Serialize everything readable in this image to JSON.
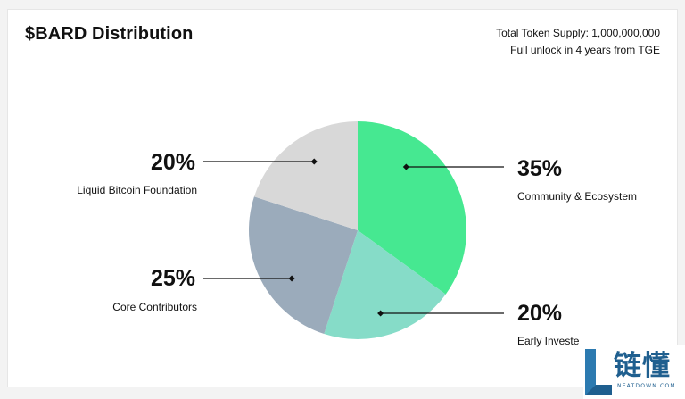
{
  "header": {
    "title": "$BARD Distribution",
    "supply_line": "Total Token Supply: 1,000,000,000",
    "unlock_line": "Full unlock in 4 years from TGE"
  },
  "chart_data": {
    "type": "pie",
    "categories": [
      "Community & Ecosystem",
      "Early Investors",
      "Core Contributors",
      "Liquid Bitcoin Foundation"
    ],
    "values": [
      35,
      20,
      25,
      20
    ],
    "percent_labels": [
      "35%",
      "20%",
      "25%",
      "20%"
    ],
    "legend_labels": [
      "Community & Ecosystem",
      "Early Investe",
      "Core Contributors",
      "Liquid Bitcoin Foundation"
    ],
    "colors": [
      "#46e891",
      "#86dcc8",
      "#9babbb",
      "#d8d8d8"
    ],
    "title": "$BARD Distribution",
    "start": "12 o'clock",
    "direction": "clockwise"
  },
  "watermark": {
    "text": "链懂",
    "subtext": "NEATDOWN.COM",
    "color": "#1f5f8f",
    "icon": "l-logo-icon"
  }
}
